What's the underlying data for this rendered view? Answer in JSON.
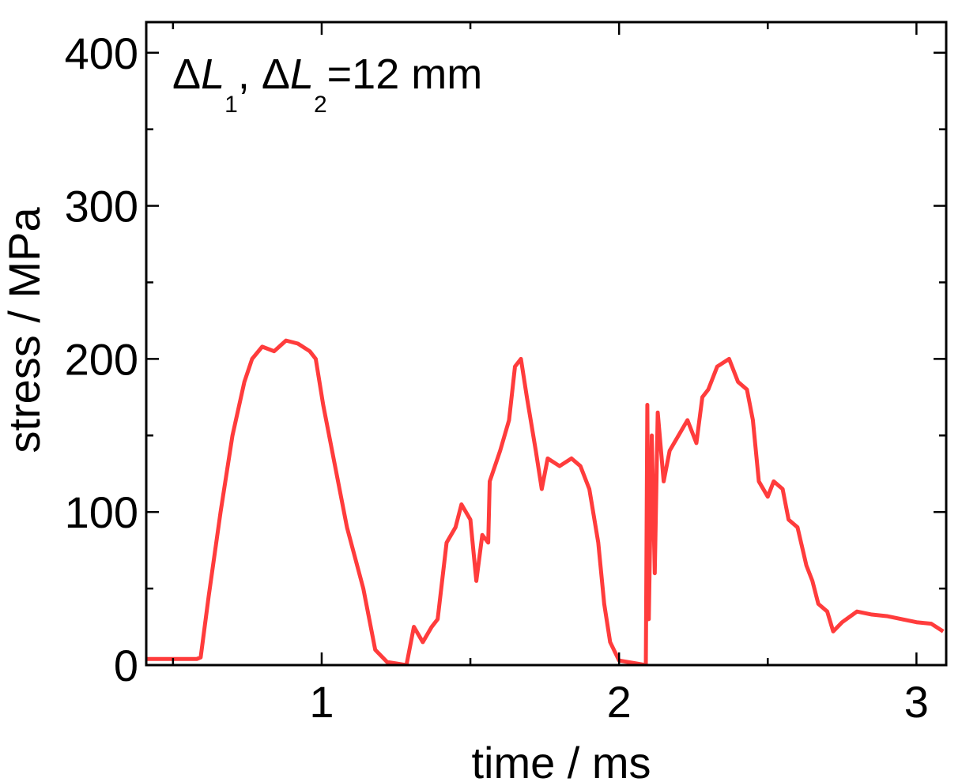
{
  "chart_data": {
    "type": "line",
    "x_label": "time / ms",
    "y_label": "stress / MPa",
    "annotation": [
      "Δ",
      "L",
      "1",
      ", Δ",
      "L",
      "2",
      "=12 mm"
    ],
    "xlim": [
      0.41,
      3.1
    ],
    "ylim": [
      0,
      420
    ],
    "xticks": [
      1,
      2,
      3
    ],
    "yticks": [
      0,
      100,
      200,
      300,
      400
    ],
    "xminorticks": [
      0.5,
      1.5,
      2.5
    ],
    "yminorticks": [
      50,
      150,
      250,
      350
    ],
    "x": [
      0.41,
      0.5,
      0.58,
      0.593,
      0.62,
      0.66,
      0.7,
      0.74,
      0.766,
      0.8,
      0.84,
      0.88,
      0.92,
      0.96,
      0.98,
      1.005,
      1.045,
      1.085,
      1.14,
      1.18,
      1.22,
      1.285,
      1.31,
      1.34,
      1.37,
      1.39,
      1.42,
      1.45,
      1.47,
      1.5,
      1.52,
      1.54,
      1.56,
      1.565,
      1.6,
      1.63,
      1.65,
      1.67,
      1.69,
      1.72,
      1.74,
      1.76,
      1.8,
      1.84,
      1.87,
      1.9,
      1.93,
      1.95,
      1.97,
      2.0,
      2.09,
      2.095,
      2.1,
      2.11,
      2.12,
      2.13,
      2.15,
      2.17,
      2.2,
      2.23,
      2.26,
      2.28,
      2.3,
      2.33,
      2.37,
      2.4,
      2.43,
      2.45,
      2.47,
      2.5,
      2.52,
      2.55,
      2.57,
      2.6,
      2.63,
      2.65,
      2.67,
      2.7,
      2.72,
      2.75,
      2.8,
      2.85,
      2.9,
      2.95,
      3.0,
      3.05,
      3.09
    ],
    "series": [
      {
        "color": "#ff3c3c",
        "values": [
          4,
          4,
          4,
          5,
          45,
          100,
          150,
          185,
          200,
          208,
          205,
          212,
          210,
          205,
          200,
          170,
          130,
          90,
          50,
          10,
          2,
          0,
          25,
          15,
          25,
          30,
          80,
          90,
          105,
          95,
          55,
          85,
          80,
          120,
          140,
          160,
          195,
          200,
          175,
          140,
          115,
          135,
          130,
          135,
          130,
          115,
          80,
          40,
          15,
          3,
          0,
          170,
          30,
          150,
          60,
          165,
          120,
          140,
          150,
          160,
          145,
          175,
          180,
          195,
          200,
          185,
          180,
          160,
          120,
          110,
          120,
          115,
          95,
          90,
          65,
          55,
          40,
          35,
          22,
          28,
          35,
          33,
          32,
          30,
          28,
          27,
          22
        ]
      }
    ]
  }
}
